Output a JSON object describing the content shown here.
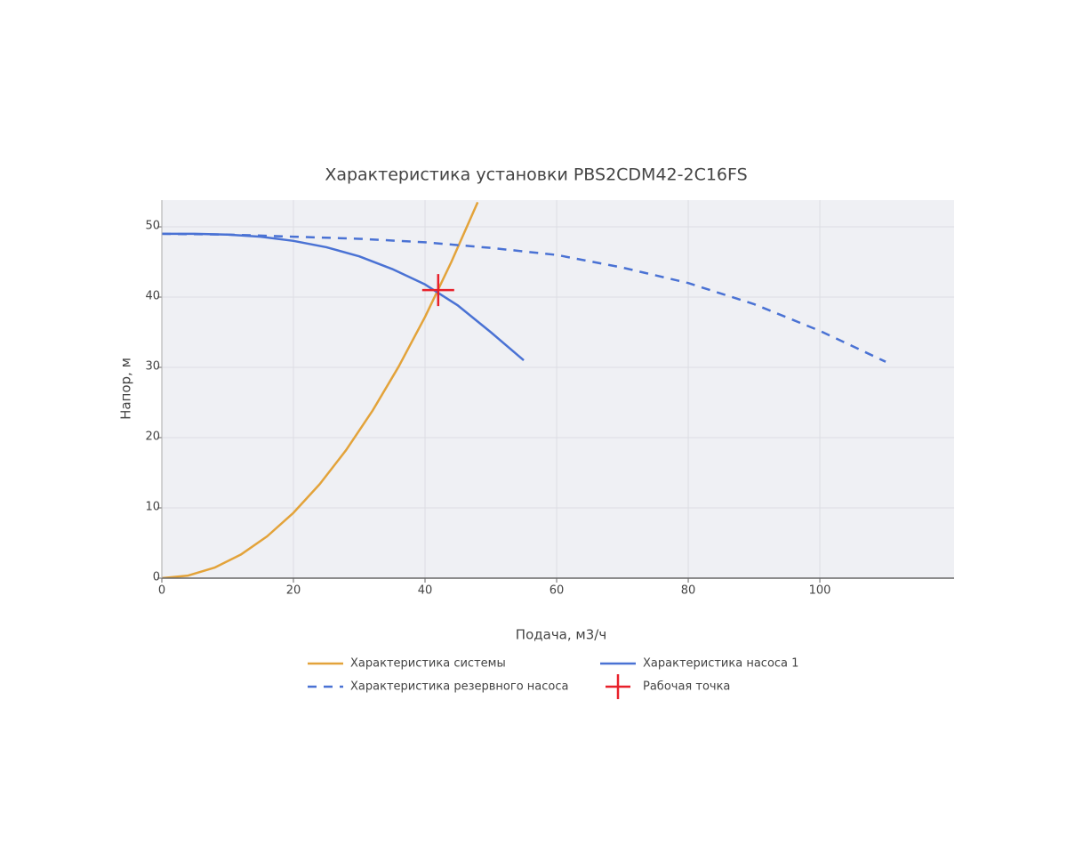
{
  "chart_data": {
    "type": "line",
    "title": "Характеристика установки PBS2CDM42-2C16FS",
    "x_label": "Подача, м3/ч",
    "y_label": "Напор, м",
    "xlim": [
      0,
      120.4
    ],
    "ylim": [
      0,
      53.8
    ],
    "xticks": [
      0,
      20,
      40,
      60,
      80,
      100
    ],
    "yticks": [
      0,
      10,
      20,
      30,
      40,
      50
    ],
    "grid": true,
    "series": [
      {
        "name": "Характеристика системы",
        "color": "#e3a33a",
        "dash": false,
        "x": [
          0,
          4,
          8,
          12,
          16,
          20,
          24,
          28,
          32,
          36,
          40,
          44,
          48
        ],
        "values": [
          0,
          0.37,
          1.49,
          3.35,
          5.95,
          9.3,
          13.39,
          18.22,
          23.8,
          30.12,
          37.18,
          45.0,
          53.5
        ]
      },
      {
        "name": "Характеристика насоса 1",
        "color": "#4a72d4",
        "dash": false,
        "x": [
          0,
          5,
          10,
          15,
          20,
          25,
          30,
          35,
          40,
          45,
          50,
          55
        ],
        "values": [
          49,
          49,
          48.9,
          48.6,
          48,
          47.1,
          45.8,
          44,
          41.8,
          38.8,
          35,
          31
        ]
      },
      {
        "name": "Характеристика резервного насоса",
        "color": "#4a72d4",
        "dash": true,
        "x": [
          0,
          10,
          20,
          30,
          40,
          50,
          60,
          70,
          80,
          90,
          100,
          110
        ],
        "values": [
          49,
          48.9,
          48.6,
          48.3,
          47.8,
          47,
          46,
          44.2,
          42,
          39,
          35.2,
          30.8
        ]
      },
      {
        "name": "Рабочая точка",
        "color": "#e8202a",
        "mode": "marker",
        "x": [
          42
        ],
        "values": [
          41
        ]
      }
    ]
  }
}
